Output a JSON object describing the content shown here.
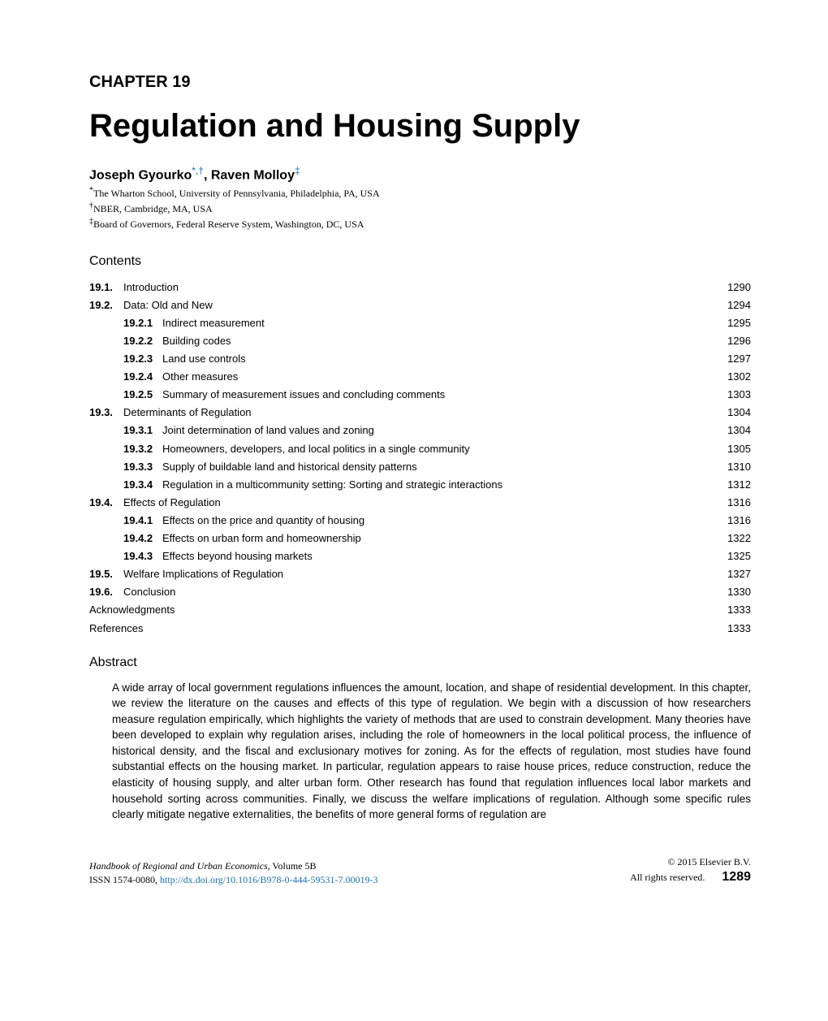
{
  "chapter_label": "CHAPTER 19",
  "title": "Regulation and Housing Supply",
  "authors": {
    "a1_name": "Joseph Gyourko",
    "a1_sup1": "*",
    "a1_sup_sep": ",",
    "a1_sup2": "†",
    "sep": ", ",
    "a2_name": "Raven Molloy",
    "a2_sup1": "‡"
  },
  "affiliations": {
    "aff1_sup": "*",
    "aff1": "The Wharton School, University of Pennsylvania, Philadelphia, PA, USA",
    "aff2_sup": "†",
    "aff2": "NBER, Cambridge, MA, USA",
    "aff3_sup": "‡",
    "aff3": "Board of Governors, Federal Reserve System, Washington, DC, USA"
  },
  "contents_heading": "Contents",
  "toc": {
    "r1": {
      "num": "19.1.",
      "text": "Introduction",
      "page": "1290"
    },
    "r2": {
      "num": "19.2.",
      "text": "Data: Old and New",
      "page": "1294"
    },
    "r3": {
      "num": "19.2.1",
      "text": "Indirect measurement",
      "page": "1295"
    },
    "r4": {
      "num": "19.2.2",
      "text": "Building codes",
      "page": "1296"
    },
    "r5": {
      "num": "19.2.3",
      "text": "Land use controls",
      "page": "1297"
    },
    "r6": {
      "num": "19.2.4",
      "text": "Other measures",
      "page": "1302"
    },
    "r7": {
      "num": "19.2.5",
      "text": "Summary of measurement issues and concluding comments",
      "page": "1303"
    },
    "r8": {
      "num": "19.3.",
      "text": "Determinants of Regulation",
      "page": "1304"
    },
    "r9": {
      "num": "19.3.1",
      "text": "Joint determination of land values and zoning",
      "page": "1304"
    },
    "r10": {
      "num": "19.3.2",
      "text": "Homeowners, developers, and local politics in a single community",
      "page": "1305"
    },
    "r11": {
      "num": "19.3.3",
      "text": "Supply of buildable land and historical density patterns",
      "page": "1310"
    },
    "r12": {
      "num": "19.3.4",
      "text": "Regulation in a multicommunity setting: Sorting and strategic interactions",
      "page": "1312"
    },
    "r13": {
      "num": "19.4.",
      "text": "Effects of Regulation",
      "page": "1316"
    },
    "r14": {
      "num": "19.4.1",
      "text": "Effects on the price and quantity of housing",
      "page": "1316"
    },
    "r15": {
      "num": "19.4.2",
      "text": "Effects on urban form and homeownership",
      "page": "1322"
    },
    "r16": {
      "num": "19.4.3",
      "text": "Effects beyond housing markets",
      "page": "1325"
    },
    "r17": {
      "num": "19.5.",
      "text": "Welfare Implications of Regulation",
      "page": "1327"
    },
    "r18": {
      "num": "19.6.",
      "text": "Conclusion",
      "page": "1330"
    },
    "r19": {
      "text": "Acknowledgments",
      "page": "1333"
    },
    "r20": {
      "text": "References",
      "page": "1333"
    }
  },
  "abstract_heading": "Abstract",
  "abstract_text": "A wide array of local government regulations influences the amount, location, and shape of residential development. In this chapter, we review the literature on the causes and effects of this type of regulation. We begin with a discussion of how researchers measure regulation empirically, which highlights the variety of methods that are used to constrain development. Many theories have been developed to explain why regulation arises, including the role of homeowners in the local political process, the influence of historical density, and the fiscal and exclusionary motives for zoning. As for the effects of regulation, most studies have found substantial effects on the housing market. In particular, regulation appears to raise house prices, reduce construction, reduce the elasticity of housing supply, and alter urban form. Other research has found that regulation influences local labor markets and household sorting across communities. Finally, we discuss the welfare implications of regulation. Although some specific rules clearly mitigate negative externalities, the benefits of more general forms of regulation are",
  "footer": {
    "left_line1_italic": "Handbook of Regional and Urban Economics",
    "left_line1_rest": ", Volume 5B",
    "left_line2_pre": "ISSN 1574-0080, ",
    "left_line2_link": "http://dx.doi.org/10.1016/B978-0-444-59531-7.00019-3",
    "right_line1": "© 2015 Elsevier B.V.",
    "right_line2": "All rights reserved.",
    "page_num": "1289"
  },
  "colors": {
    "link": "#1a6fb0",
    "text": "#000000",
    "background": "#ffffff"
  }
}
